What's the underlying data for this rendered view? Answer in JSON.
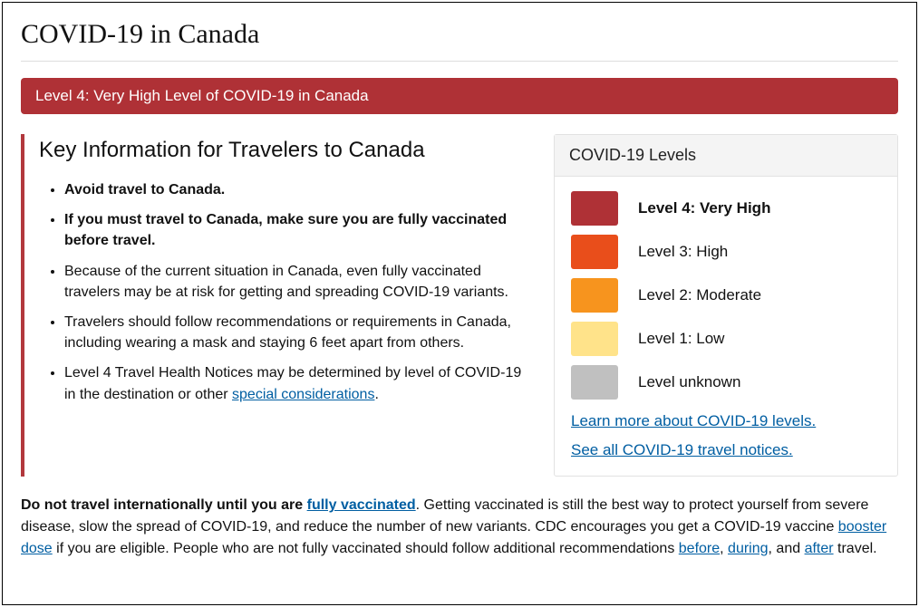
{
  "page": {
    "title": "COVID-19 in Canada"
  },
  "banner": {
    "text": "Level 4: Very High Level of COVID-19 in Canada",
    "bg_color": "#af3136"
  },
  "left": {
    "accent_color": "#b2383d",
    "heading": "Key Information for Travelers to Canada",
    "bullets": [
      {
        "text": "Avoid travel to Canada.",
        "bold": true
      },
      {
        "text": "If you must travel to Canada, make sure you are fully vaccinated before travel.",
        "bold": true
      },
      {
        "text": "Because of the current situation in Canada, even fully vaccinated travelers may be at risk for getting and spreading COVID-19 variants.",
        "bold": false
      },
      {
        "text": "Travelers should follow recommendations or requirements in Canada, including wearing a mask and staying 6 feet apart from others.",
        "bold": false
      }
    ],
    "bullet5": {
      "prefix": "Level 4 Travel Health Notices may be determined by level of COVID-19 in the destination or other ",
      "link": "special considerations",
      "suffix": "."
    }
  },
  "right": {
    "heading": "COVID-19 Levels",
    "levels": [
      {
        "color": "#af3136",
        "label": "Level 4: Very High",
        "bold": true
      },
      {
        "color": "#e94e1b",
        "label": "Level 3: High",
        "bold": false
      },
      {
        "color": "#f7941e",
        "label": "Level 2: Moderate",
        "bold": false
      },
      {
        "color": "#ffe38a",
        "label": "Level 1: Low",
        "bold": false
      },
      {
        "color": "#c0c0c0",
        "label": "Level unknown",
        "bold": false
      }
    ],
    "link1": "Learn more about COVID-19 levels.",
    "link2": "See all COVID-19 travel notices."
  },
  "bottom": {
    "t1": "Do not travel internationally until you are ",
    "l1": "fully vaccinated",
    "t2": ". Getting vaccinated is still the best way to protect yourself from severe disease, slow the spread of COVID-19, and reduce the number of new variants. CDC encourages you get a COVID-19 vaccine ",
    "l2": "booster dose",
    "t3": " if you are eligible. People who are not fully vaccinated should follow additional recommendations ",
    "l3": "before",
    "t4": ", ",
    "l4": "during",
    "t5": ", and ",
    "l5": "after",
    "t6": " travel."
  }
}
